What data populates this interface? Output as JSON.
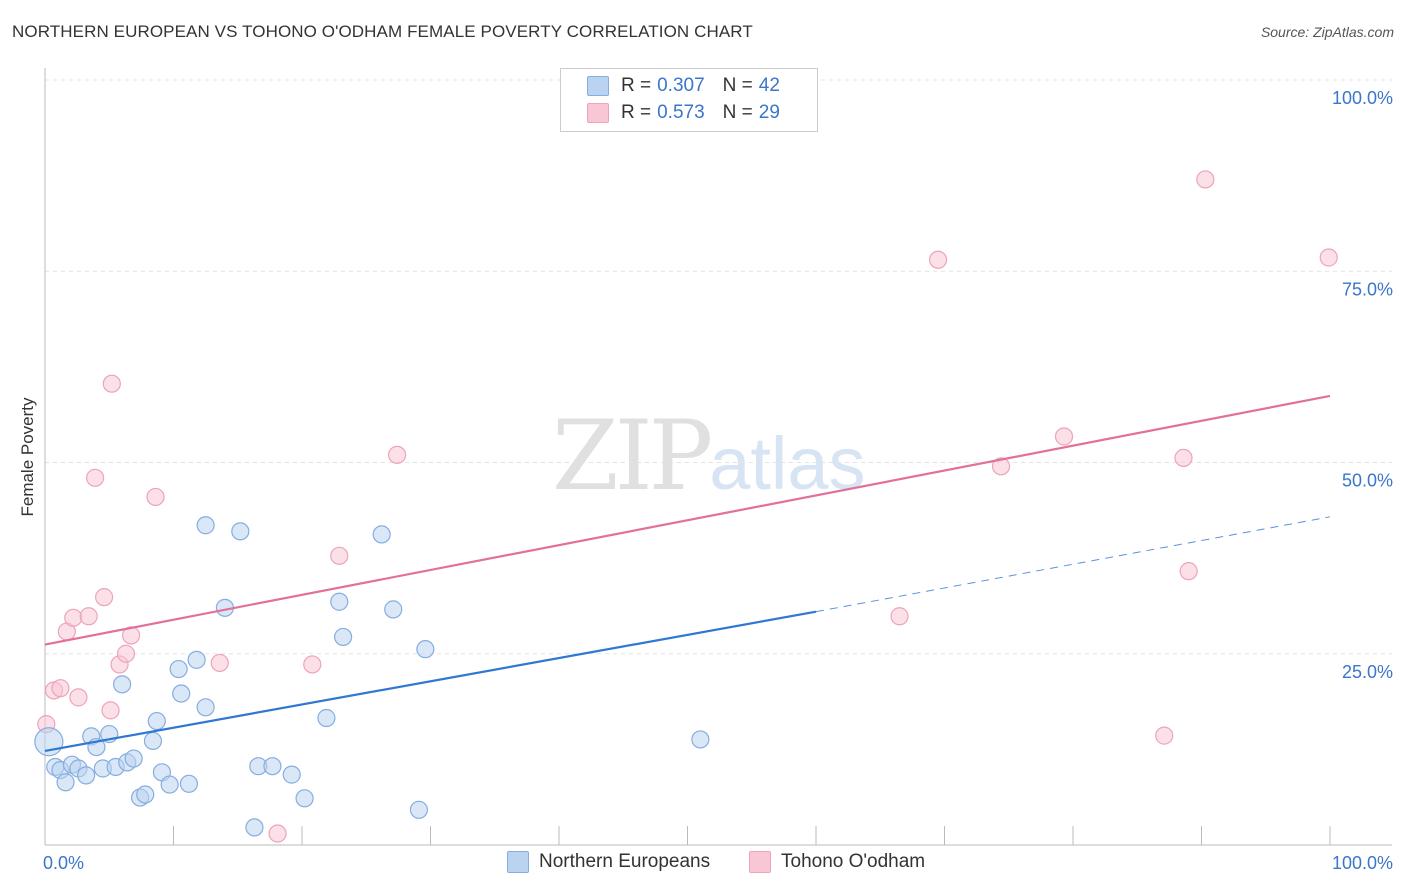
{
  "title": "NORTHERN EUROPEAN VS TOHONO O'ODHAM FEMALE POVERTY CORRELATION CHART",
  "source": "Source: ZipAtlas.com",
  "watermark": {
    "zip": "ZIP",
    "atlas": "atlas"
  },
  "legend": {
    "rows": [
      {
        "r_label": "R =",
        "r_value": "0.307",
        "n_label": "N =",
        "n_value": "42"
      },
      {
        "r_label": "R =",
        "r_value": "0.573",
        "n_label": "N =",
        "n_value": "29"
      }
    ]
  },
  "colors": {
    "blue_fill": "#b9d3f1",
    "blue_stroke": "#86ade0",
    "blue_line": "#2f78d2",
    "pink_fill": "#f8c6d5",
    "pink_stroke": "#eea3ba",
    "pink_line": "#e2709a",
    "tick_label": "#3a76c9",
    "grid": "#e3e3e3"
  },
  "chart_data": {
    "type": "scatter",
    "title": "NORTHERN EUROPEAN VS TOHONO O'ODHAM FEMALE POVERTY CORRELATION CHART",
    "xlabel": "",
    "ylabel": "Female Poverty",
    "xlim": [
      0,
      100
    ],
    "ylim": [
      0,
      100
    ],
    "x_tick_labels": [
      "0.0%",
      "100.0%"
    ],
    "y_ticks": [
      25,
      50,
      75,
      100
    ],
    "y_tick_labels": [
      "25.0%",
      "50.0%",
      "75.0%",
      "100.0%"
    ],
    "grid": true,
    "legend_position": "top-center",
    "series": [
      {
        "name": "Northern Europeans",
        "r": 0.307,
        "n": 42,
        "points": [
          [
            0.3,
            13.5
          ],
          [
            0.8,
            10.2
          ],
          [
            1.2,
            9.8
          ],
          [
            1.6,
            8.2
          ],
          [
            2.1,
            10.5
          ],
          [
            2.6,
            10.0
          ],
          [
            3.2,
            9.1
          ],
          [
            3.6,
            14.2
          ],
          [
            4.0,
            12.8
          ],
          [
            4.5,
            10.0
          ],
          [
            5.0,
            14.5
          ],
          [
            5.5,
            10.2
          ],
          [
            6.0,
            21.0
          ],
          [
            6.4,
            10.8
          ],
          [
            6.9,
            11.3
          ],
          [
            7.4,
            6.2
          ],
          [
            7.8,
            6.6
          ],
          [
            8.4,
            13.6
          ],
          [
            8.7,
            16.2
          ],
          [
            9.1,
            9.5
          ],
          [
            9.7,
            7.9
          ],
          [
            10.4,
            23.0
          ],
          [
            10.6,
            19.8
          ],
          [
            11.2,
            8.0
          ],
          [
            11.8,
            24.2
          ],
          [
            12.5,
            18.0
          ],
          [
            12.5,
            41.8
          ],
          [
            14.0,
            31.0
          ],
          [
            15.2,
            41.0
          ],
          [
            16.3,
            2.3
          ],
          [
            16.6,
            10.3
          ],
          [
            17.7,
            10.3
          ],
          [
            19.2,
            9.2
          ],
          [
            20.2,
            6.1
          ],
          [
            21.9,
            16.6
          ],
          [
            22.9,
            31.8
          ],
          [
            23.2,
            27.2
          ],
          [
            26.2,
            40.6
          ],
          [
            27.1,
            30.8
          ],
          [
            29.1,
            4.6
          ],
          [
            29.6,
            25.6
          ],
          [
            51.0,
            13.8
          ]
        ],
        "trend": {
          "x": [
            0,
            60
          ],
          "y": [
            12.3,
            30.5
          ],
          "dashed_x": [
            60,
            100
          ],
          "dashed_y": [
            30.5,
            42.9
          ]
        }
      },
      {
        "name": "Tohono O'odham",
        "r": 0.573,
        "n": 29,
        "points": [
          [
            0.1,
            15.8
          ],
          [
            0.7,
            20.2
          ],
          [
            1.2,
            20.5
          ],
          [
            1.7,
            27.9
          ],
          [
            2.2,
            29.7
          ],
          [
            2.6,
            19.3
          ],
          [
            3.4,
            29.9
          ],
          [
            3.9,
            48.0
          ],
          [
            4.6,
            32.4
          ],
          [
            5.2,
            60.3
          ],
          [
            5.1,
            17.6
          ],
          [
            5.8,
            23.6
          ],
          [
            6.3,
            25.0
          ],
          [
            6.7,
            27.4
          ],
          [
            8.6,
            45.5
          ],
          [
            13.6,
            23.8
          ],
          [
            18.1,
            1.5
          ],
          [
            20.8,
            23.6
          ],
          [
            22.9,
            37.8
          ],
          [
            27.4,
            51.0
          ],
          [
            66.5,
            29.9
          ],
          [
            69.5,
            76.5
          ],
          [
            74.4,
            49.5
          ],
          [
            79.3,
            53.4
          ],
          [
            87.1,
            14.3
          ],
          [
            88.6,
            50.6
          ],
          [
            89.0,
            35.8
          ],
          [
            90.3,
            87.0
          ],
          [
            99.9,
            76.8
          ]
        ],
        "trend": {
          "x": [
            0,
            100
          ],
          "y": [
            26.2,
            58.7
          ]
        }
      }
    ]
  }
}
